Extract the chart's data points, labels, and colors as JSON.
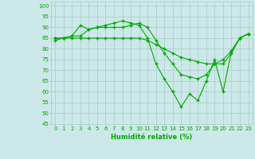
{
  "xlabel": "Humidité relative (%)",
  "background_color": "#cce8e8",
  "grid_color": "#aacccc",
  "line_color": "#00aa00",
  "xlim": [
    -0.5,
    23.5
  ],
  "ylim": [
    45,
    102
  ],
  "yticks": [
    45,
    50,
    55,
    60,
    65,
    70,
    75,
    80,
    85,
    90,
    95,
    100
  ],
  "xticks": [
    0,
    1,
    2,
    3,
    4,
    5,
    6,
    7,
    8,
    9,
    10,
    11,
    12,
    13,
    14,
    15,
    16,
    17,
    18,
    19,
    20,
    21,
    22,
    23
  ],
  "series": [
    [
      85,
      85,
      86,
      86,
      89,
      90,
      91,
      92,
      93,
      92,
      91,
      85,
      73,
      66,
      60,
      53,
      59,
      56,
      65,
      75,
      60,
      79,
      85,
      87
    ],
    [
      84,
      85,
      86,
      91,
      89,
      90,
      90,
      90,
      90,
      91,
      92,
      90,
      84,
      78,
      73,
      68,
      67,
      66,
      68,
      73,
      73,
      78,
      85,
      87
    ],
    [
      85,
      85,
      85,
      85,
      85,
      85,
      85,
      85,
      85,
      85,
      85,
      84,
      82,
      80,
      78,
      76,
      75,
      74,
      73,
      73,
      75,
      79,
      85,
      87
    ]
  ]
}
